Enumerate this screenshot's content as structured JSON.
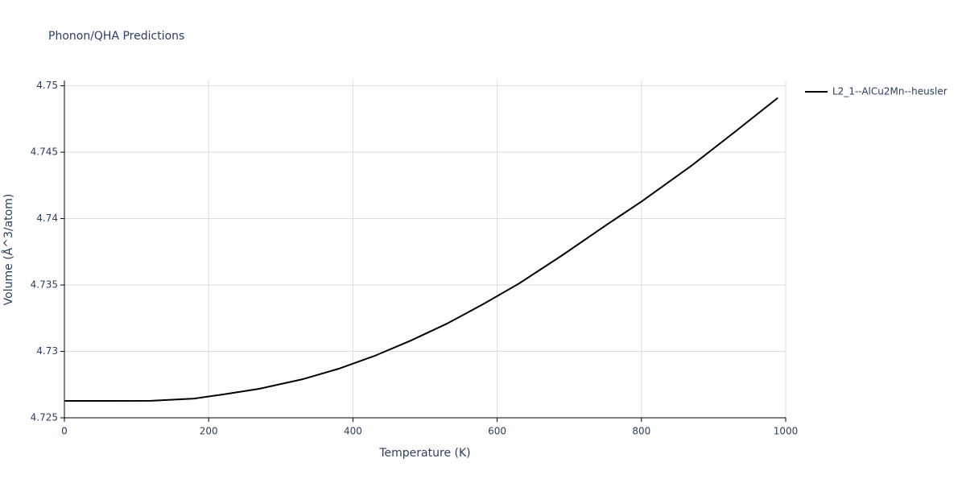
{
  "chart_data": {
    "type": "line",
    "title": "Phonon/QHA Predictions",
    "x_label": "Temperature (K)",
    "y_label": "Volume (Å^3/atom)",
    "x": [
      0,
      120,
      180,
      220,
      270,
      330,
      380,
      430,
      480,
      530,
      580,
      630,
      690,
      750,
      800,
      870,
      930,
      989
    ],
    "series": [
      {
        "name": "L2_1--AlCu2Mn--heusler",
        "color": "#000000",
        "values": [
          4.72627,
          4.72628,
          4.72645,
          4.72676,
          4.72718,
          4.7279,
          4.72869,
          4.72966,
          4.73081,
          4.73208,
          4.73354,
          4.7351,
          4.73723,
          4.73947,
          4.74128,
          4.74401,
          4.74655,
          4.74909
        ]
      }
    ],
    "xlim": [
      0,
      1000
    ],
    "xticks": [
      0,
      200,
      400,
      600,
      800,
      1000
    ],
    "ylim": [
      4.725,
      4.7504
    ],
    "yticks": [
      4.725,
      4.73,
      4.735,
      4.74,
      4.745,
      4.75
    ],
    "grid": true,
    "legend": "right"
  }
}
